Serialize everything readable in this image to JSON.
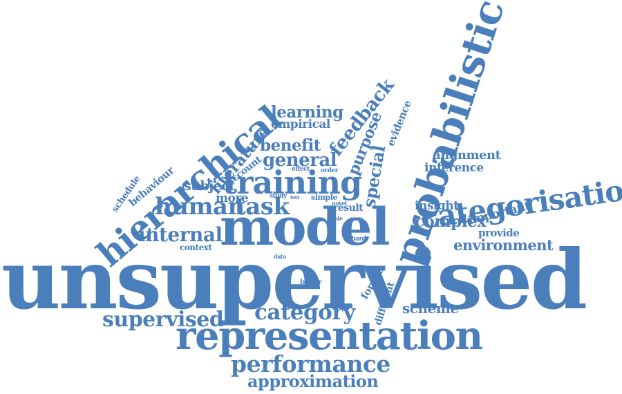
{
  "color": "#4a7fbb",
  "words": {
    "unsupervised": "unsupervised",
    "model": "model",
    "representation": "representation",
    "probabilistic": "probabilistic",
    "hierarchical": "hierarchical",
    "categorisation": "categorisation",
    "training": "training",
    "human": "human",
    "task": "task",
    "performance": "performance",
    "approximation": "approximation",
    "supervised": "supervised",
    "category": "category",
    "internal": "internal",
    "general": "general",
    "benefit": "benefit",
    "learning": "learning",
    "empirical": "empirical",
    "feedback": "feedback",
    "purpose": "purpose",
    "evidence": "evidence",
    "special": "special",
    "literature": "literature",
    "account": "account",
    "behaviour": "behaviour",
    "schedule": "schedule",
    "subject": "subject",
    "more": "more",
    "alignment": "alignment",
    "inference": "inference",
    "insight": "insight",
    "important": "important",
    "complex": "complex",
    "provide": "provide",
    "environment": "environment",
    "scheme": "scheme",
    "different": "different",
    "forget": "forget",
    "better": "better",
    "data": "data",
    "context": "context",
    "hard": "hard",
    "role": "role",
    "easy": "easy",
    "result": "result",
    "novel": "novel",
    "simple": "simple",
    "test": "test",
    "study": "study",
    "effect": "effect",
    "order": "order"
  }
}
